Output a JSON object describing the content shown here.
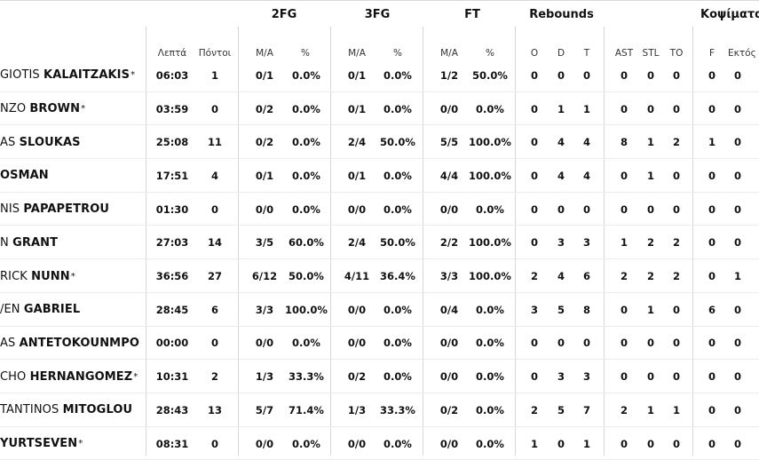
{
  "groups": {
    "two_fg": "2FG",
    "three_fg": "3FG",
    "ft": "FT",
    "rebounds": "Rebounds",
    "fouls": "Κοψίματα"
  },
  "columns": {
    "minutes": "Λεπτά",
    "points": "Πόντοι",
    "fg2_ma": "Μ/Α",
    "fg2_pct": "%",
    "fg3_ma": "Μ/Α",
    "fg3_pct": "%",
    "ft_ma": "Μ/Α",
    "ft_pct": "%",
    "reb_o": "O",
    "reb_d": "D",
    "reb_t": "T",
    "ast": "AST",
    "stl": "STL",
    "to": "TO",
    "f": "F",
    "ektos": "Εκτός"
  },
  "players": [
    {
      "first": "GIOTIS",
      "last": "KALAITZAKIS",
      "star": "*",
      "min": "06:03",
      "pts": "1",
      "fg2": "0/1",
      "fg2p": "0.0%",
      "fg3": "0/1",
      "fg3p": "0.0%",
      "ft": "1/2",
      "ftp": "50.0%",
      "o": "0",
      "d": "0",
      "t": "0",
      "ast": "0",
      "stl": "0",
      "to": "0",
      "f": "0",
      "ek": "0"
    },
    {
      "first": "NZO",
      "last": "BROWN",
      "star": "*",
      "min": "03:59",
      "pts": "0",
      "fg2": "0/2",
      "fg2p": "0.0%",
      "fg3": "0/1",
      "fg3p": "0.0%",
      "ft": "0/0",
      "ftp": "0.0%",
      "o": "0",
      "d": "1",
      "t": "1",
      "ast": "0",
      "stl": "0",
      "to": "0",
      "f": "0",
      "ek": "0"
    },
    {
      "first": "AS",
      "last": "SLOUKAS",
      "star": "",
      "min": "25:08",
      "pts": "11",
      "fg2": "0/2",
      "fg2p": "0.0%",
      "fg3": "2/4",
      "fg3p": "50.0%",
      "ft": "5/5",
      "ftp": "100.0%",
      "o": "0",
      "d": "4",
      "t": "4",
      "ast": "8",
      "stl": "1",
      "to": "2",
      "f": "1",
      "ek": "0"
    },
    {
      "first": "",
      "last": "OSMAN",
      "star": "",
      "min": "17:51",
      "pts": "4",
      "fg2": "0/1",
      "fg2p": "0.0%",
      "fg3": "0/1",
      "fg3p": "0.0%",
      "ft": "4/4",
      "ftp": "100.0%",
      "o": "0",
      "d": "4",
      "t": "4",
      "ast": "0",
      "stl": "1",
      "to": "0",
      "f": "0",
      "ek": "0"
    },
    {
      "first": "NIS",
      "last": "PAPAPETROU",
      "star": "",
      "min": "01:30",
      "pts": "0",
      "fg2": "0/0",
      "fg2p": "0.0%",
      "fg3": "0/0",
      "fg3p": "0.0%",
      "ft": "0/0",
      "ftp": "0.0%",
      "o": "0",
      "d": "0",
      "t": "0",
      "ast": "0",
      "stl": "0",
      "to": "0",
      "f": "0",
      "ek": "0"
    },
    {
      "first": "N",
      "last": "GRANT",
      "star": "",
      "min": "27:03",
      "pts": "14",
      "fg2": "3/5",
      "fg2p": "60.0%",
      "fg3": "2/4",
      "fg3p": "50.0%",
      "ft": "2/2",
      "ftp": "100.0%",
      "o": "0",
      "d": "3",
      "t": "3",
      "ast": "1",
      "stl": "2",
      "to": "2",
      "f": "0",
      "ek": "0"
    },
    {
      "first": "RICK",
      "last": "NUNN",
      "star": "*",
      "min": "36:56",
      "pts": "27",
      "fg2": "6/12",
      "fg2p": "50.0%",
      "fg3": "4/11",
      "fg3p": "36.4%",
      "ft": "3/3",
      "ftp": "100.0%",
      "o": "2",
      "d": "4",
      "t": "6",
      "ast": "2",
      "stl": "2",
      "to": "2",
      "f": "0",
      "ek": "1"
    },
    {
      "first": "/EN",
      "last": "GABRIEL",
      "star": "",
      "min": "28:45",
      "pts": "6",
      "fg2": "3/3",
      "fg2p": "100.0%",
      "fg3": "0/0",
      "fg3p": "0.0%",
      "ft": "0/4",
      "ftp": "0.0%",
      "o": "3",
      "d": "5",
      "t": "8",
      "ast": "0",
      "stl": "1",
      "to": "0",
      "f": "6",
      "ek": "0"
    },
    {
      "first": "AS",
      "last": "ANTETOKOUNMPO",
      "star": "",
      "min": "00:00",
      "pts": "0",
      "fg2": "0/0",
      "fg2p": "0.0%",
      "fg3": "0/0",
      "fg3p": "0.0%",
      "ft": "0/0",
      "ftp": "0.0%",
      "o": "0",
      "d": "0",
      "t": "0",
      "ast": "0",
      "stl": "0",
      "to": "0",
      "f": "0",
      "ek": "0"
    },
    {
      "first": "CHO",
      "last": "HERNANGOMEZ",
      "star": "*",
      "min": "10:31",
      "pts": "2",
      "fg2": "1/3",
      "fg2p": "33.3%",
      "fg3": "0/2",
      "fg3p": "0.0%",
      "ft": "0/0",
      "ftp": "0.0%",
      "o": "0",
      "d": "3",
      "t": "3",
      "ast": "0",
      "stl": "0",
      "to": "0",
      "f": "0",
      "ek": "0"
    },
    {
      "first": "TANTINOS",
      "last": "MITOGLOU",
      "star": "",
      "min": "28:43",
      "pts": "13",
      "fg2": "5/7",
      "fg2p": "71.4%",
      "fg3": "1/3",
      "fg3p": "33.3%",
      "ft": "0/2",
      "ftp": "0.0%",
      "o": "2",
      "d": "5",
      "t": "7",
      "ast": "2",
      "stl": "1",
      "to": "1",
      "f": "0",
      "ek": "0"
    },
    {
      "first": "",
      "last": "YURTSEVEN",
      "star": "*",
      "min": "08:31",
      "pts": "0",
      "fg2": "0/0",
      "fg2p": "0.0%",
      "fg3": "0/0",
      "fg3p": "0.0%",
      "ft": "0/0",
      "ftp": "0.0%",
      "o": "1",
      "d": "0",
      "t": "1",
      "ast": "0",
      "stl": "0",
      "to": "0",
      "f": "0",
      "ek": "0"
    }
  ]
}
